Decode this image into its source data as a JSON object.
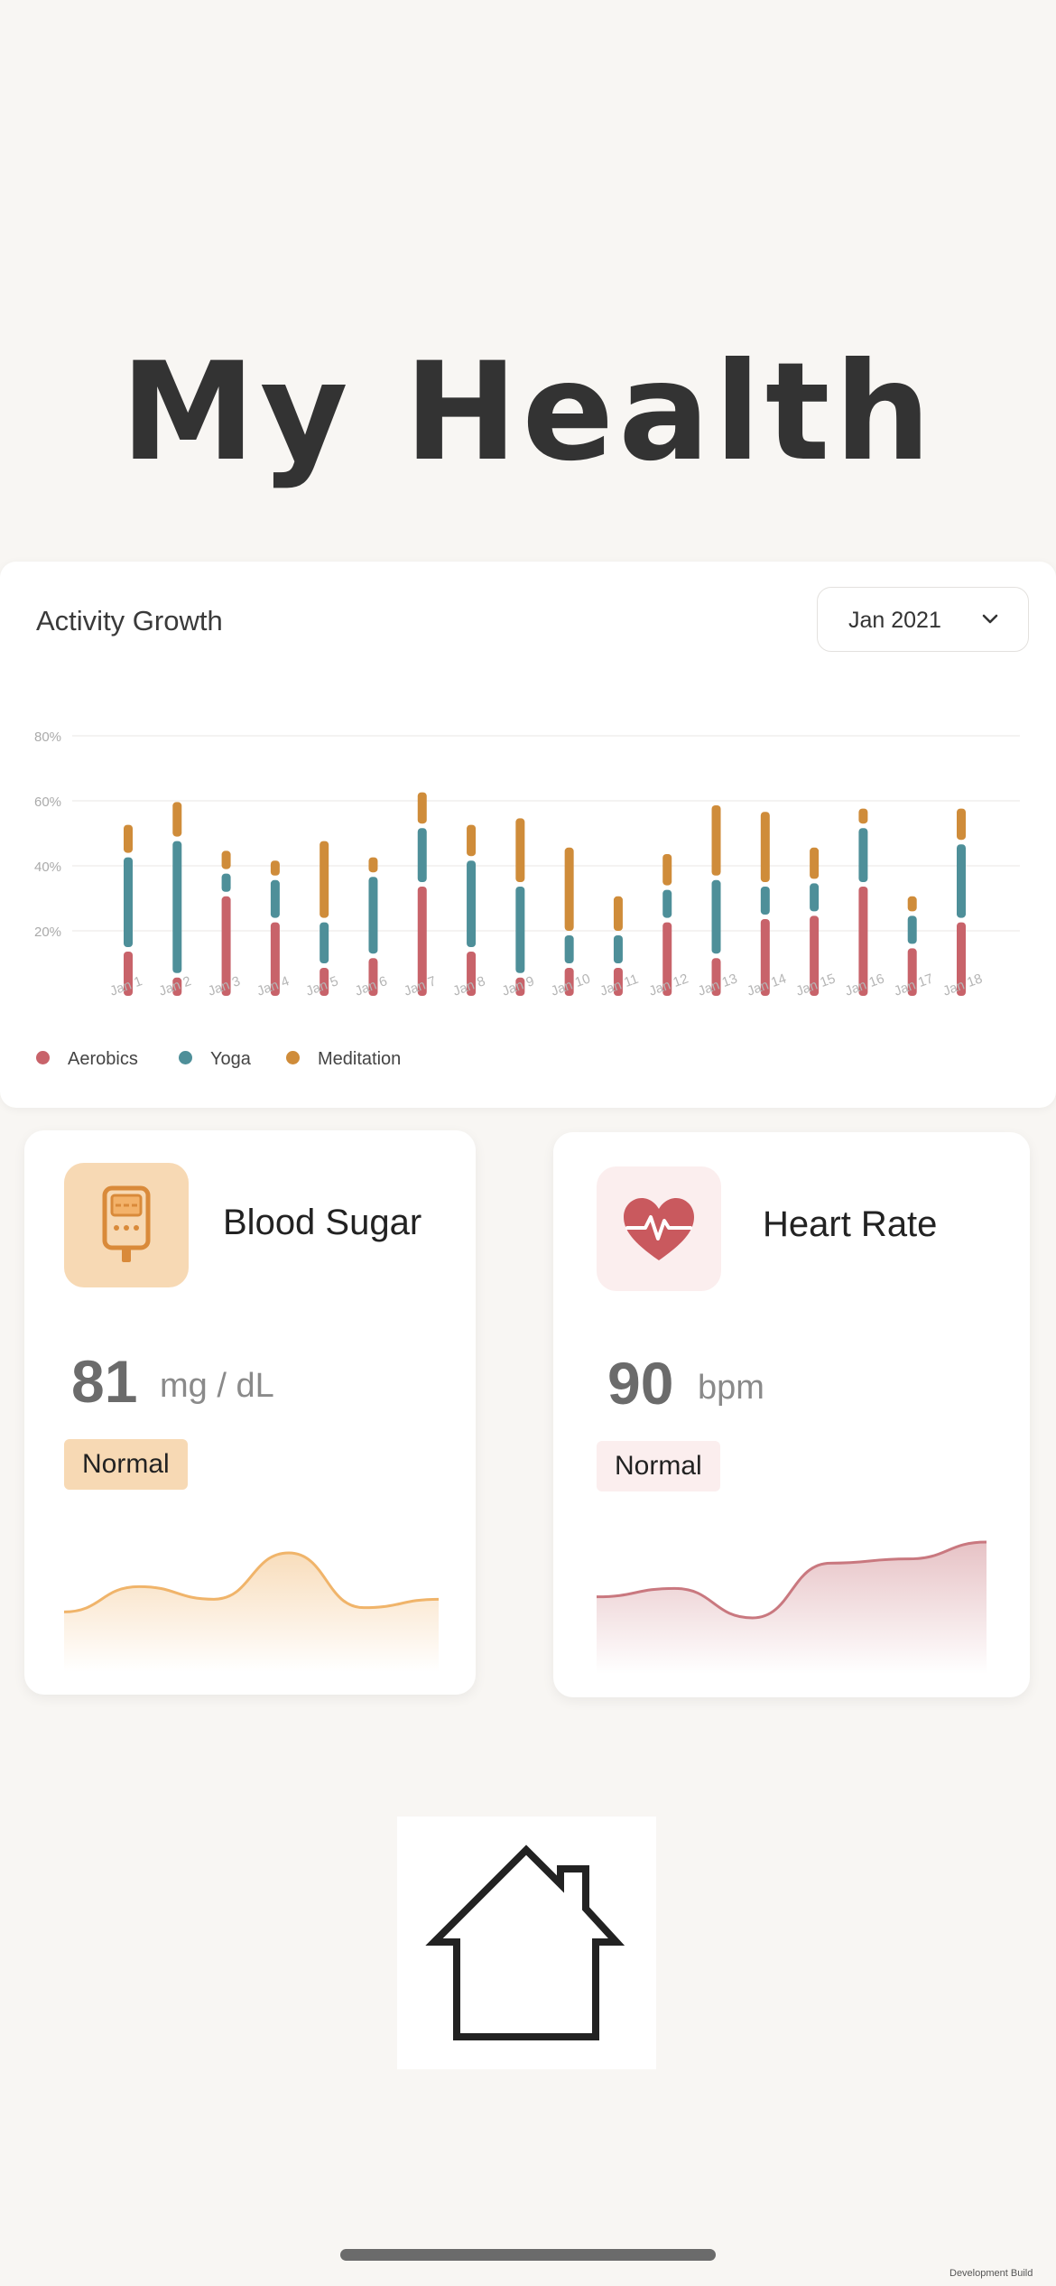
{
  "page_title": "My Health",
  "activity": {
    "title": "Activity Growth",
    "month_selected": "Jan 2021",
    "legend": [
      {
        "name": "Aerobics",
        "color": "#c8636a"
      },
      {
        "name": "Yoga",
        "color": "#4e8f99"
      },
      {
        "name": "Meditation",
        "color": "#cf8c3a"
      }
    ]
  },
  "chart_data": {
    "type": "bar",
    "stacked": true,
    "categories": [
      "Jan 1",
      "Jan 2",
      "Jan 3",
      "Jan 4",
      "Jan 5",
      "Jan 6",
      "Jan 7",
      "Jan 8",
      "Jan 9",
      "Jan 10",
      "Jan 11",
      "Jan 12",
      "Jan 13",
      "Jan 14",
      "Jan 15",
      "Jan 16",
      "Jan 17",
      "Jan 18"
    ],
    "series": [
      {
        "name": "Aerobics",
        "color": "#c8636a",
        "values": [
          15,
          7,
          32,
          24,
          10,
          13,
          35,
          15,
          7,
          10,
          10,
          24,
          13,
          25,
          26,
          35,
          16,
          24
        ]
      },
      {
        "name": "Yoga",
        "color": "#4e8f99",
        "values": [
          29,
          42,
          7,
          13,
          14,
          25,
          18,
          28,
          28,
          10,
          10,
          10,
          24,
          10,
          10,
          18,
          10,
          24
        ]
      },
      {
        "name": "Meditation",
        "color": "#cf8c3a",
        "values": [
          10,
          12,
          7,
          6,
          25,
          6,
          11,
          11,
          21,
          27,
          12,
          11,
          23,
          23,
          11,
          6,
          6,
          11
        ]
      }
    ],
    "y_ticks": [
      "20%",
      "40%",
      "60%",
      "80%"
    ],
    "ylim": [
      0,
      80
    ],
    "legend_position": "bottom-left",
    "grid": true
  },
  "blood_sugar": {
    "title": "Blood Sugar",
    "value": "81",
    "unit": "mg / dL",
    "status": "Normal",
    "icon": "glucose-meter-icon",
    "accent": "#f0b46a",
    "trend": [
      50,
      80,
      65,
      120,
      55,
      65
    ]
  },
  "heart_rate": {
    "title": "Heart Rate",
    "value": "90",
    "unit": "bpm",
    "status": "Normal",
    "icon": "heart-pulse-icon",
    "accent": "#c9787f",
    "trend": [
      70,
      80,
      45,
      110,
      115,
      135
    ]
  },
  "nav": {
    "home_icon": "home-icon"
  },
  "watermark": "Development Build"
}
